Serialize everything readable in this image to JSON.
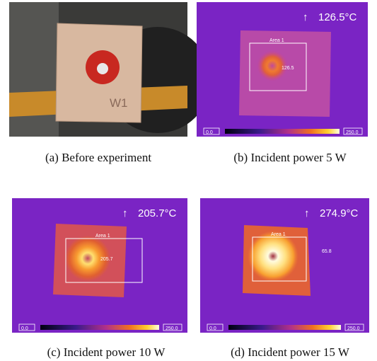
{
  "panels": [
    {
      "caption": "(a) Before experiment",
      "label": "W1"
    },
    {
      "caption": "(b) Incident power 5 W",
      "arrow": "↑",
      "max": "126.5°C",
      "area": "Area 1",
      "spot": "126.5",
      "scale_min": "0.0",
      "scale_max": "250.0"
    },
    {
      "caption": "(c) Incident power 10 W",
      "arrow": "↑",
      "max": "205.7°C",
      "area": "Area 1",
      "spot": "205.7",
      "scale_min": "0.0",
      "scale_max": "250.0"
    },
    {
      "caption": "(d) Incident power 15 W",
      "arrow": "↑",
      "max": "274.9°C",
      "area": "Area 1",
      "spot": "65.8",
      "scale_min": "0.0",
      "scale_max": "250.0"
    }
  ]
}
